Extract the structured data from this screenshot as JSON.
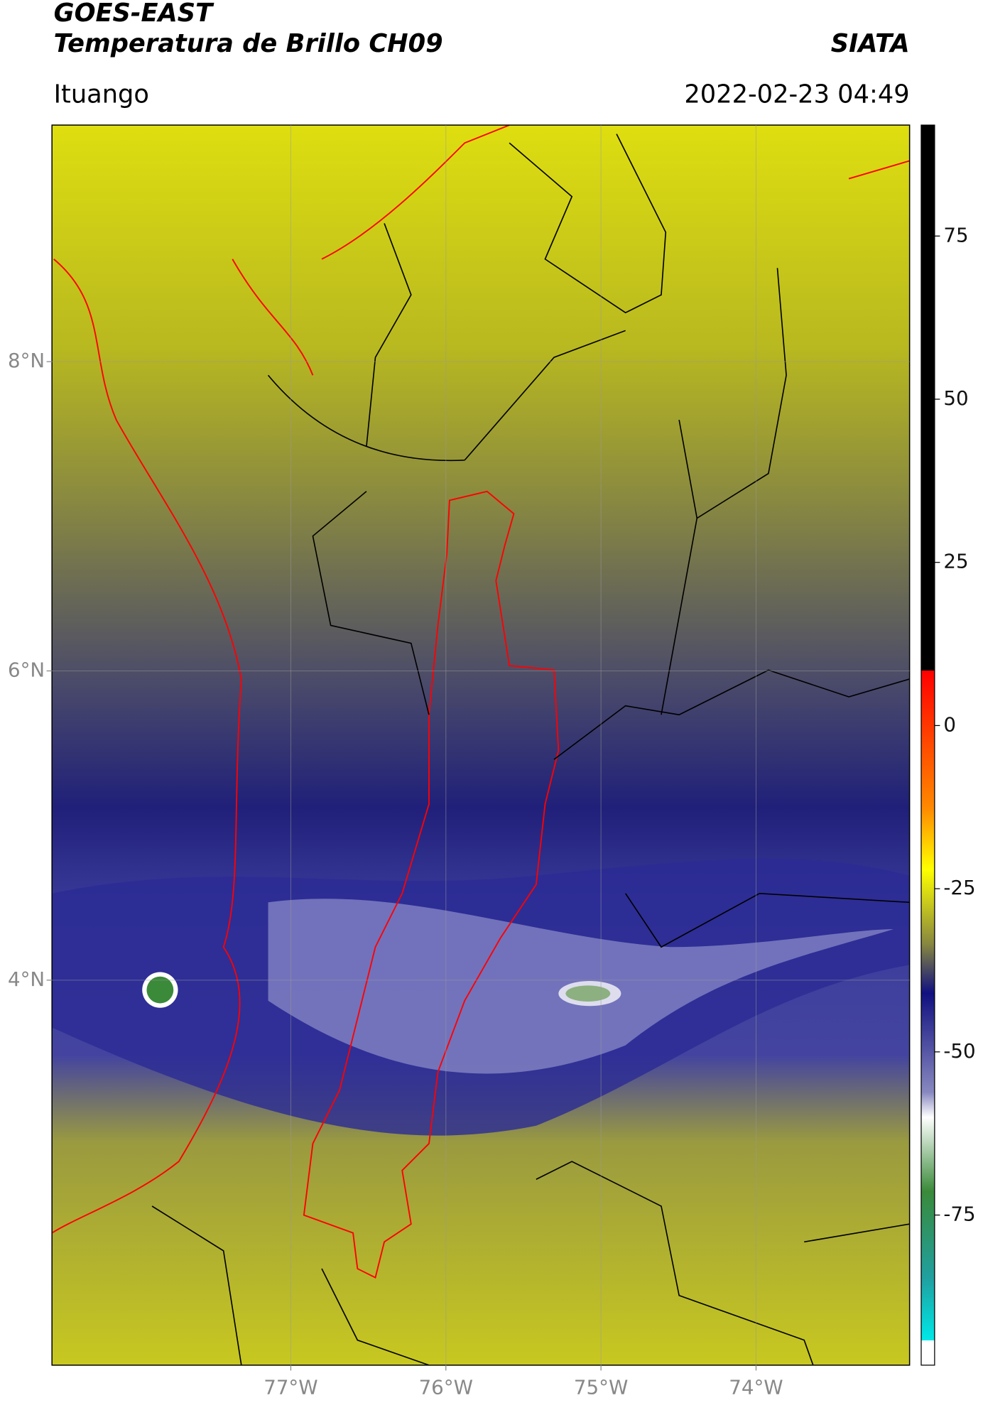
{
  "header": {
    "title": "GOES-EAST",
    "subtitle": "Temperatura de Brillo CH09",
    "source": "SIATA",
    "location": "Ituango",
    "datetime": "2022-02-23 04:49"
  },
  "map": {
    "xlim": [
      -78.54,
      -73.01
    ],
    "ylim": [
      1.51,
      9.53
    ],
    "xticks": [
      {
        "value": -77,
        "label": "77°W"
      },
      {
        "value": -76,
        "label": "76°W"
      },
      {
        "value": -75,
        "label": "75°W"
      },
      {
        "value": -74,
        "label": "74°W"
      }
    ],
    "yticks": [
      {
        "value": 8,
        "label": "8°N"
      },
      {
        "value": 6,
        "label": "6°N"
      },
      {
        "value": 4,
        "label": "4°N"
      }
    ],
    "grid": true
  },
  "colorbar": {
    "lim": [
      -98,
      92
    ],
    "ticks": [
      75,
      50,
      25,
      0,
      -25,
      -50,
      -75
    ]
  }
}
